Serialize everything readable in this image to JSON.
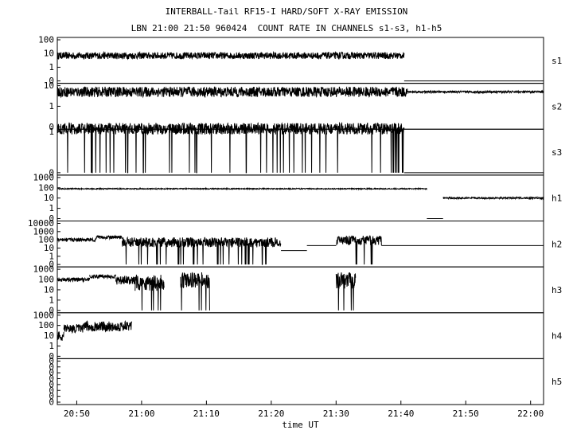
{
  "chart_data": {
    "type": "line",
    "title": "INTERBALL-Tail RF15-I HARD/SOFT X-RAY EMISSION",
    "subtitle": "LBN 21:00 21:50 960424  COUNT RATE IN CHANNELS s1-s3, h1-h5",
    "xlabel": "time UT",
    "x_ticks": [
      "20:50",
      "21:00",
      "21:10",
      "21:20",
      "21:30",
      "21:40",
      "21:50",
      "22:00"
    ],
    "xlim": [
      "20:47",
      "22:02"
    ],
    "y_scale": "log",
    "panels": [
      {
        "name": "s1",
        "yticks": [
          "100",
          "10",
          "1",
          "0"
        ],
        "segments": [
          {
            "start": "20:47",
            "end": "21:40.5",
            "level": 7,
            "noise": 0.25
          },
          {
            "start": "21:40.5",
            "end": "22:02",
            "level": 0,
            "noise": 0
          }
        ]
      },
      {
        "name": "s2",
        "yticks": [
          "10",
          "1",
          "0"
        ],
        "segments": [
          {
            "start": "20:47",
            "end": "21:41",
            "level": 5,
            "noise": 0.25
          },
          {
            "start": "21:41",
            "end": "22:02",
            "level": 5,
            "noise": 0.05
          }
        ]
      },
      {
        "name": "s3",
        "yticks": [
          "1",
          "0"
        ],
        "segments": [
          {
            "start": "20:47",
            "end": "21:40.5",
            "level": 2,
            "noise": 0.6
          },
          {
            "start": "21:40.5",
            "end": "22:02",
            "level": 0,
            "noise": 0
          }
        ]
      },
      {
        "name": "h1",
        "yticks": [
          "1000",
          "100",
          "10",
          "1",
          "0"
        ],
        "segments": [
          {
            "start": "20:47",
            "end": "21:44",
            "level": 80,
            "noise": 0.05
          },
          {
            "start": "21:44",
            "end": "21:46.5",
            "level": 0,
            "noise": 0
          },
          {
            "start": "21:46.5",
            "end": "22:02",
            "level": 10,
            "noise": 0.08
          }
        ]
      },
      {
        "name": "h2",
        "yticks": [
          "10000",
          "1000",
          "100",
          "10",
          "1",
          "0"
        ],
        "segments": [
          {
            "start": "20:47",
            "end": "20:53",
            "level": 100,
            "noise": 0.2
          },
          {
            "start": "20:53",
            "end": "20:57",
            "level": 200,
            "noise": 0.2
          },
          {
            "start": "20:57",
            "end": "21:21.5",
            "level": 50,
            "noise": 0.6
          },
          {
            "start": "21:21.5",
            "end": "21:25.5",
            "level": 5,
            "noise": 0
          },
          {
            "start": "21:25.5",
            "end": "21:30",
            "level": 20,
            "noise": 0
          },
          {
            "start": "21:30",
            "end": "21:37",
            "level": 80,
            "noise": 0.6
          },
          {
            "start": "21:37",
            "end": "22:02",
            "level": 20,
            "noise": 0
          }
        ]
      },
      {
        "name": "h3",
        "yticks": [
          "1000",
          "100",
          "10",
          "1",
          "0"
        ],
        "segments": [
          {
            "start": "20:47",
            "end": "20:52",
            "level": 100,
            "noise": 0.2
          },
          {
            "start": "20:52",
            "end": "20:56",
            "level": 200,
            "noise": 0.2
          },
          {
            "start": "20:56",
            "end": "20:59",
            "level": 80,
            "noise": 0.4
          },
          {
            "start": "20:59",
            "end": "21:03.5",
            "level": 50,
            "noise": 0.8
          },
          {
            "start": "21:06",
            "end": "21:10.5",
            "level": 80,
            "noise": 0.8
          },
          {
            "start": "21:30",
            "end": "21:33",
            "level": 80,
            "noise": 0.8
          }
        ]
      },
      {
        "name": "h4",
        "yticks": [
          "1000",
          "100",
          "10",
          "1",
          "0"
        ],
        "segments": [
          {
            "start": "20:47",
            "end": "20:48",
            "level": 10,
            "noise": 0.5
          },
          {
            "start": "20:48",
            "end": "20:51",
            "level": 50,
            "noise": 0.4
          },
          {
            "start": "20:51",
            "end": "20:58.5",
            "level": 80,
            "noise": 0.5
          }
        ]
      },
      {
        "name": "h5",
        "yticks": [
          "0",
          "0",
          "0",
          "0",
          "0",
          "0",
          "0",
          "0"
        ],
        "segments": []
      }
    ]
  }
}
